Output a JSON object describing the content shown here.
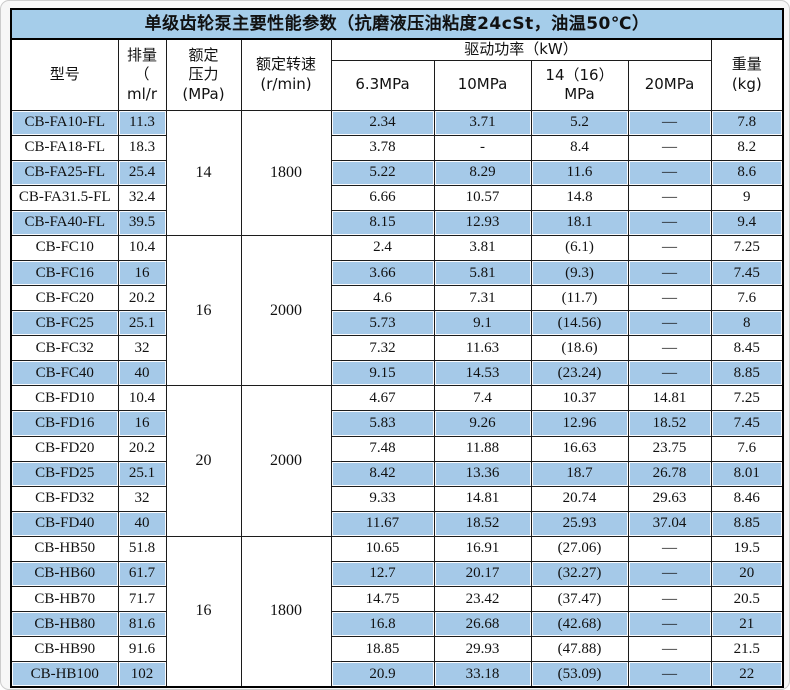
{
  "colors": {
    "row_highlight": "#a5c9e8",
    "title_bar": "#a5cdea",
    "border": "#1c1c1c",
    "frame_bg": "#f7f7f7"
  },
  "chart_data": {
    "type": "table",
    "title": "单级齿轮泵主要性能参数（抗磨液压油粘度24cSt，油温50℃）",
    "header": {
      "model": [
        "型号"
      ],
      "displacement": [
        "排量",
        "（",
        "ml/r"
      ],
      "pressure": [
        "额定",
        "压力",
        "(MPa)"
      ],
      "speed": [
        "额定转速",
        "(r/min)"
      ],
      "power_group": "驱动功率（kW）",
      "power_cols": [
        [
          "6.3MPa"
        ],
        [
          "10MPa"
        ],
        [
          "14（16）",
          "MPa"
        ],
        [
          "20MPa"
        ]
      ],
      "weight": [
        "重量",
        "(kg)"
      ]
    },
    "groups": [
      {
        "pressure": "14",
        "speed": "1800",
        "rows": [
          {
            "model": "CB-FA10-FL",
            "displacement": "11.3",
            "p63": "2.34",
            "p10": "3.71",
            "p14": "5.2",
            "p20": "—",
            "weight": "7.8",
            "highlight": true
          },
          {
            "model": "CB-FA18-FL",
            "displacement": "18.3",
            "p63": "3.78",
            "p10": "-",
            "p14": "8.4",
            "p20": "—",
            "weight": "8.2",
            "highlight": false
          },
          {
            "model": "CB-FA25-FL",
            "displacement": "25.4",
            "p63": "5.22",
            "p10": "8.29",
            "p14": "11.6",
            "p20": "—",
            "weight": "8.6",
            "highlight": true
          },
          {
            "model": "CB-FA31.5-FL",
            "displacement": "32.4",
            "p63": "6.66",
            "p10": "10.57",
            "p14": "14.8",
            "p20": "—",
            "weight": "9",
            "highlight": false
          },
          {
            "model": "CB-FA40-FL",
            "displacement": "39.5",
            "p63": "8.15",
            "p10": "12.93",
            "p14": "18.1",
            "p20": "—",
            "weight": "9.4",
            "highlight": true
          }
        ]
      },
      {
        "pressure": "16",
        "speed": "2000",
        "rows": [
          {
            "model": "CB-FC10",
            "displacement": "10.4",
            "p63": "2.4",
            "p10": "3.81",
            "p14": "(6.1)",
            "p20": "—",
            "weight": "7.25",
            "highlight": false
          },
          {
            "model": "CB-FC16",
            "displacement": "16",
            "p63": "3.66",
            "p10": "5.81",
            "p14": "(9.3)",
            "p20": "—",
            "weight": "7.45",
            "highlight": true
          },
          {
            "model": "CB-FC20",
            "displacement": "20.2",
            "p63": "4.6",
            "p10": "7.31",
            "p14": "(11.7)",
            "p20": "—",
            "weight": "7.6",
            "highlight": false
          },
          {
            "model": "CB-FC25",
            "displacement": "25.1",
            "p63": "5.73",
            "p10": "9.1",
            "p14": "(14.56)",
            "p20": "—",
            "weight": "8",
            "highlight": true
          },
          {
            "model": "CB-FC32",
            "displacement": "32",
            "p63": "7.32",
            "p10": "11.63",
            "p14": "(18.6)",
            "p20": "—",
            "weight": "8.45",
            "highlight": false
          },
          {
            "model": "CB-FC40",
            "displacement": "40",
            "p63": "9.15",
            "p10": "14.53",
            "p14": "(23.24)",
            "p20": "—",
            "weight": "8.85",
            "highlight": true
          }
        ]
      },
      {
        "pressure": "20",
        "speed": "2000",
        "rows": [
          {
            "model": "CB-FD10",
            "displacement": "10.4",
            "p63": "4.67",
            "p10": "7.4",
            "p14": "10.37",
            "p20": "14.81",
            "weight": "7.25",
            "highlight": false
          },
          {
            "model": "CB-FD16",
            "displacement": "16",
            "p63": "5.83",
            "p10": "9.26",
            "p14": "12.96",
            "p20": "18.52",
            "weight": "7.45",
            "highlight": true
          },
          {
            "model": "CB-FD20",
            "displacement": "20.2",
            "p63": "7.48",
            "p10": "11.88",
            "p14": "16.63",
            "p20": "23.75",
            "weight": "7.6",
            "highlight": false
          },
          {
            "model": "CB-FD25",
            "displacement": "25.1",
            "p63": "8.42",
            "p10": "13.36",
            "p14": "18.7",
            "p20": "26.78",
            "weight": "8.01",
            "highlight": true
          },
          {
            "model": "CB-FD32",
            "displacement": "32",
            "p63": "9.33",
            "p10": "14.81",
            "p14": "20.74",
            "p20": "29.63",
            "weight": "8.46",
            "highlight": false
          },
          {
            "model": "CB-FD40",
            "displacement": "40",
            "p63": "11.67",
            "p10": "18.52",
            "p14": "25.93",
            "p20": "37.04",
            "weight": "8.85",
            "highlight": true
          }
        ]
      },
      {
        "pressure": "16",
        "speed": "1800",
        "rows": [
          {
            "model": "CB-HB50",
            "displacement": "51.8",
            "p63": "10.65",
            "p10": "16.91",
            "p14": "(27.06)",
            "p20": "—",
            "weight": "19.5",
            "highlight": false
          },
          {
            "model": "CB-HB60",
            "displacement": "61.7",
            "p63": "12.7",
            "p10": "20.17",
            "p14": "(32.27)",
            "p20": "—",
            "weight": "20",
            "highlight": true
          },
          {
            "model": "CB-HB70",
            "displacement": "71.7",
            "p63": "14.75",
            "p10": "23.42",
            "p14": "(37.47)",
            "p20": "—",
            "weight": "20.5",
            "highlight": false
          },
          {
            "model": "CB-HB80",
            "displacement": "81.6",
            "p63": "16.8",
            "p10": "26.68",
            "p14": "(42.68)",
            "p20": "—",
            "weight": "21",
            "highlight": true
          },
          {
            "model": "CB-HB90",
            "displacement": "91.6",
            "p63": "18.85",
            "p10": "29.93",
            "p14": "(47.88)",
            "p20": "—",
            "weight": "21.5",
            "highlight": false
          },
          {
            "model": "CB-HB100",
            "displacement": "102",
            "p63": "20.9",
            "p10": "33.18",
            "p14": "(53.09)",
            "p20": "—",
            "weight": "22",
            "highlight": true
          }
        ]
      }
    ]
  }
}
